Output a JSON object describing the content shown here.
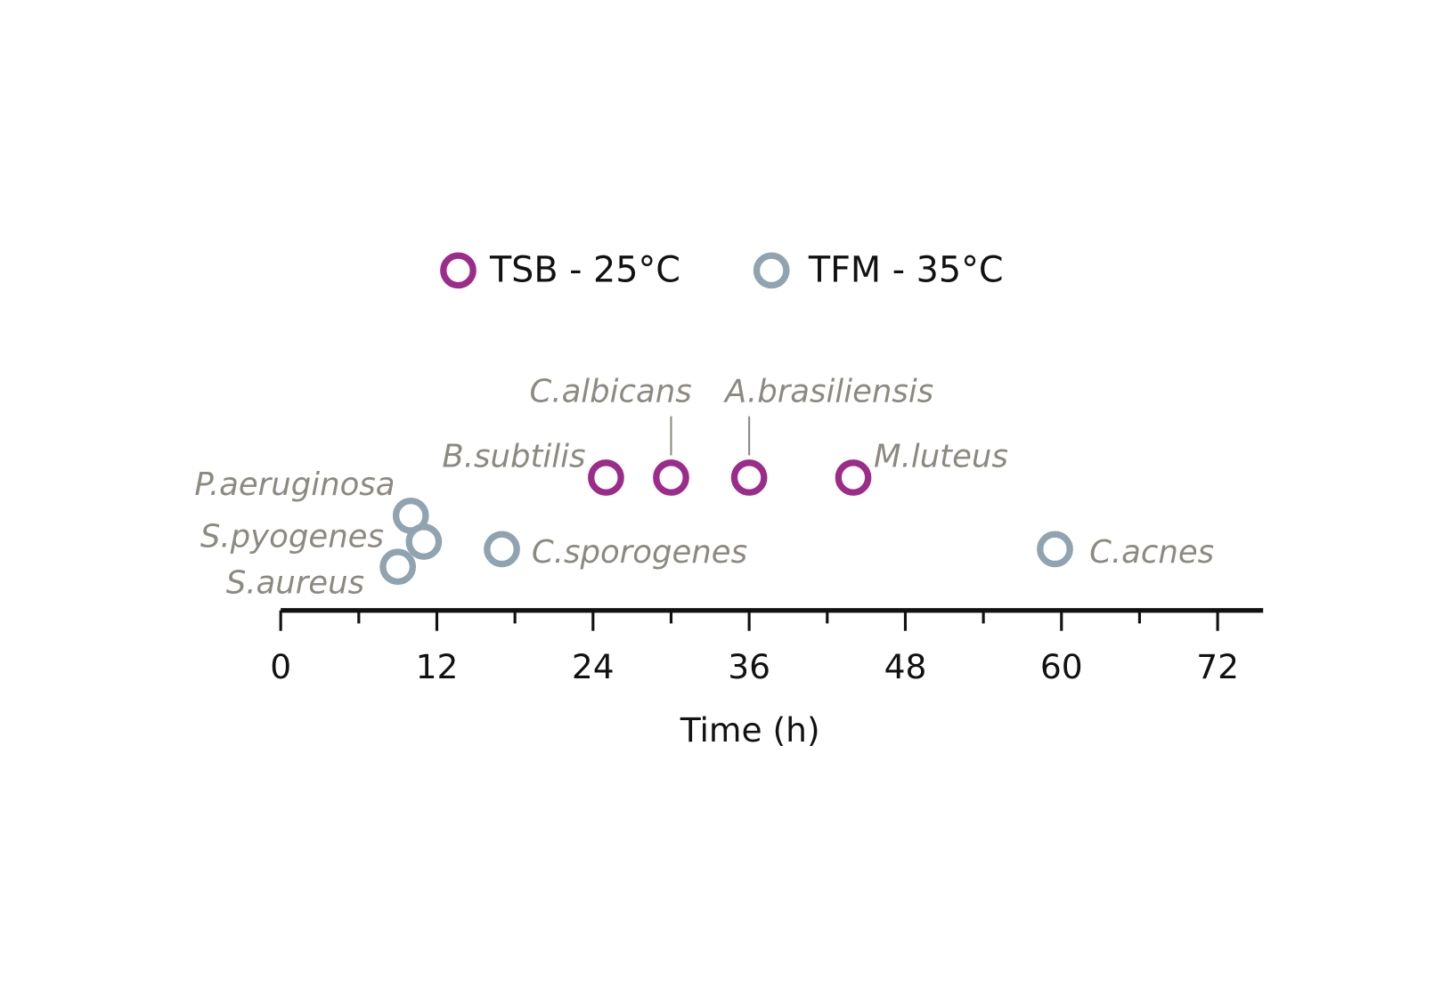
{
  "chart_data": {
    "type": "scatter",
    "x_label": "Time (h)",
    "xlim": [
      0,
      75.5
    ],
    "xticks": [
      0,
      12,
      24,
      36,
      48,
      60,
      72
    ],
    "minor_xticks": [
      6,
      18,
      30,
      42,
      54,
      66
    ],
    "series": [
      {
        "name": "TSB - 25°C",
        "color": "#9b2c8a",
        "labels": [
          "B.subtilis",
          "C.albicans",
          "A.brasiliensis",
          "M.luteus"
        ],
        "x": [
          25,
          30,
          36,
          44
        ]
      },
      {
        "name": "TFM - 35°C",
        "color": "#8fa3b0",
        "labels": [
          "P.aeruginosa",
          "S.pyogenes",
          "S.aureus",
          "C.sporogenes",
          "C.acnes"
        ],
        "x": [
          10,
          11,
          9,
          17,
          59.5
        ]
      }
    ]
  }
}
